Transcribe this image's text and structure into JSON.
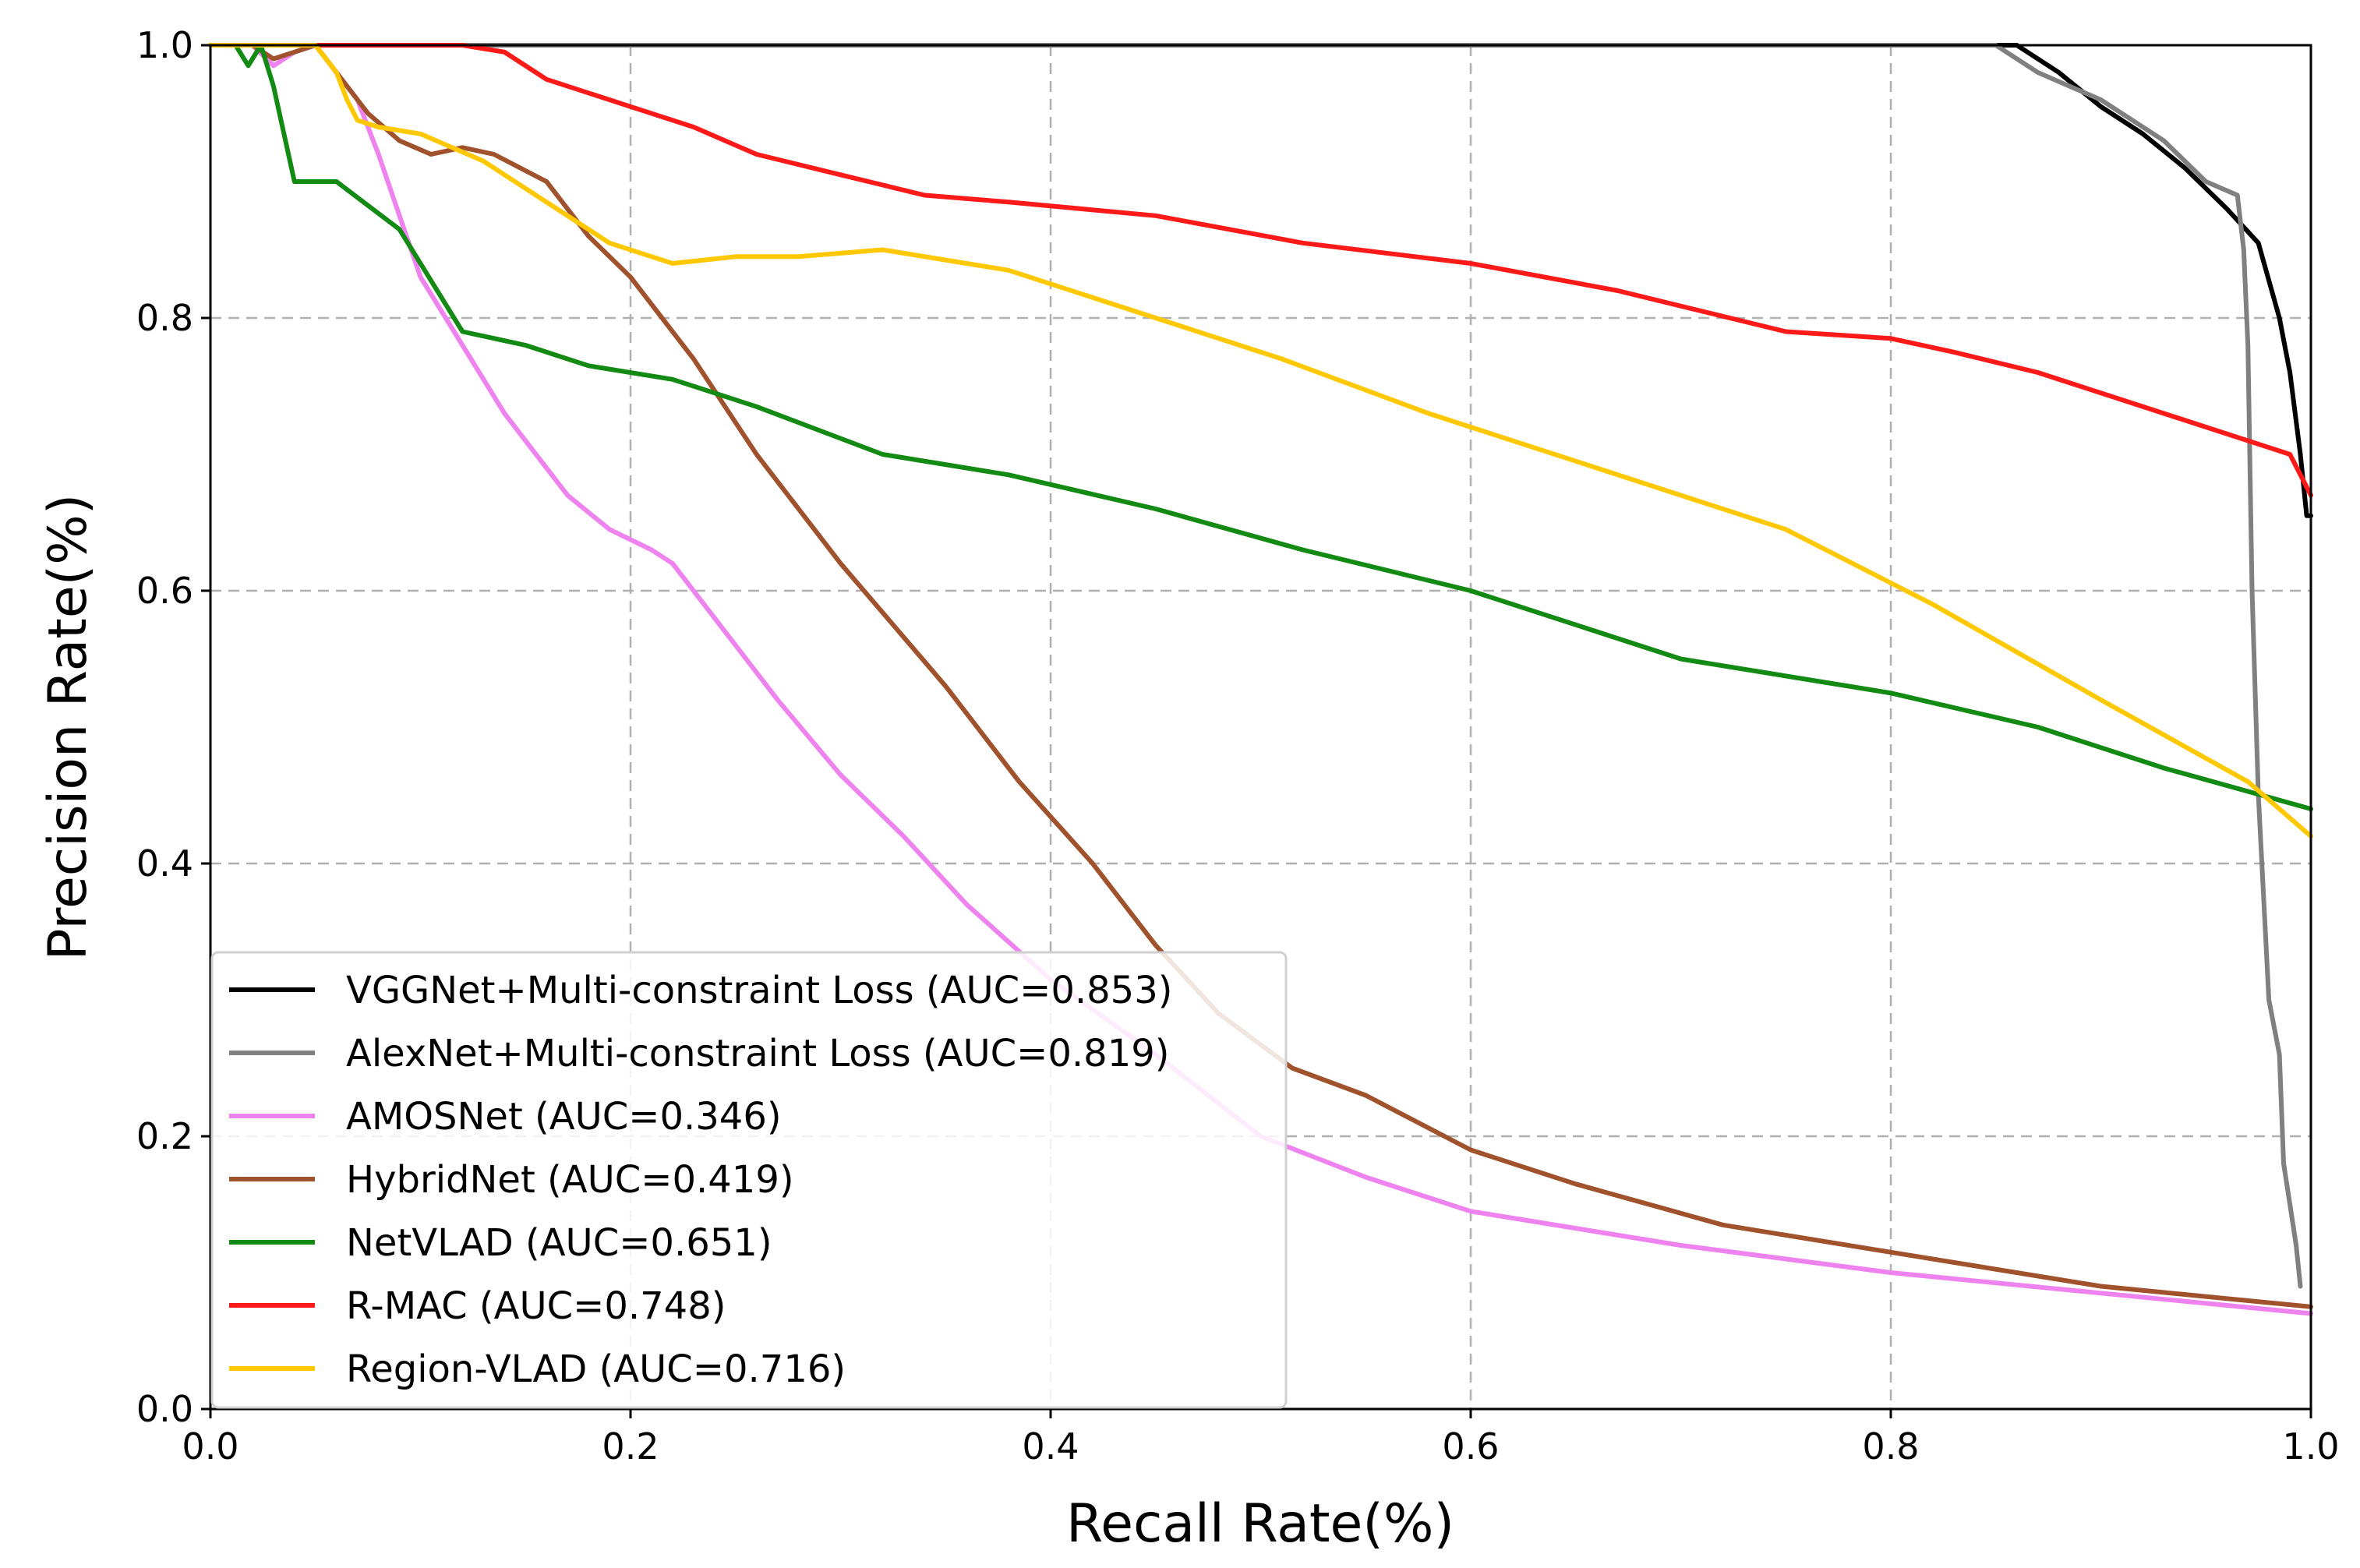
{
  "chart_data": {
    "type": "line",
    "title": "",
    "xlabel": "Recall Rate(%)",
    "ylabel": "Precision Rate(%)",
    "xlim": [
      0.0,
      1.0
    ],
    "ylim": [
      0.0,
      1.0
    ],
    "xticks": [
      "0.0",
      "0.2",
      "0.4",
      "0.6",
      "0.8",
      "1.0"
    ],
    "yticks": [
      "0.0",
      "0.2",
      "0.4",
      "0.6",
      "0.8",
      "1.0"
    ],
    "grid": true,
    "legend_position": "lower-left",
    "series": [
      {
        "name": "VGGNet+Multi-constraint Loss (AUC=0.853)",
        "color": "#000000",
        "x": [
          0.0,
          0.86,
          0.88,
          0.9,
          0.92,
          0.94,
          0.96,
          0.975,
          0.985,
          0.99,
          0.995,
          0.998,
          1.0
        ],
        "y": [
          1.0,
          1.0,
          0.98,
          0.955,
          0.935,
          0.91,
          0.88,
          0.855,
          0.8,
          0.76,
          0.7,
          0.655,
          0.655
        ]
      },
      {
        "name": "AlexNet+Multi-constraint Loss (AUC=0.819)",
        "color": "#808080",
        "x": [
          0.0,
          0.85,
          0.87,
          0.9,
          0.93,
          0.95,
          0.965,
          0.968,
          0.97,
          0.972,
          0.975,
          0.98,
          0.985,
          0.987,
          0.99,
          0.993,
          0.995
        ],
        "y": [
          1.0,
          1.0,
          0.98,
          0.96,
          0.93,
          0.9,
          0.89,
          0.85,
          0.78,
          0.6,
          0.45,
          0.3,
          0.26,
          0.18,
          0.15,
          0.12,
          0.09
        ]
      },
      {
        "name": "AMOSNet (AUC=0.346)",
        "color": "#ee82ee",
        "x": [
          0.0,
          0.02,
          0.03,
          0.04,
          0.05,
          0.06,
          0.07,
          0.08,
          0.1,
          0.12,
          0.14,
          0.16,
          0.17,
          0.19,
          0.21,
          0.22,
          0.24,
          0.27,
          0.3,
          0.33,
          0.36,
          0.4,
          0.45,
          0.5,
          0.55,
          0.6,
          0.7,
          0.8,
          0.9,
          1.0
        ],
        "y": [
          1.0,
          1.0,
          0.985,
          0.995,
          1.0,
          0.98,
          0.96,
          0.92,
          0.83,
          0.78,
          0.73,
          0.69,
          0.67,
          0.645,
          0.63,
          0.62,
          0.58,
          0.52,
          0.465,
          0.42,
          0.37,
          0.315,
          0.26,
          0.2,
          0.17,
          0.145,
          0.12,
          0.1,
          0.085,
          0.07
        ]
      },
      {
        "name": "HybridNet (AUC=0.419)",
        "color": "#a0522d",
        "x": [
          0.0,
          0.02,
          0.03,
          0.04,
          0.05,
          0.06,
          0.075,
          0.09,
          0.105,
          0.12,
          0.135,
          0.16,
          0.18,
          0.2,
          0.215,
          0.23,
          0.26,
          0.3,
          0.35,
          0.385,
          0.42,
          0.45,
          0.48,
          0.515,
          0.55,
          0.6,
          0.65,
          0.72,
          0.8,
          0.9,
          1.0
        ],
        "y": [
          1.0,
          1.0,
          0.99,
          0.995,
          1.0,
          0.98,
          0.95,
          0.93,
          0.92,
          0.925,
          0.92,
          0.9,
          0.86,
          0.83,
          0.8,
          0.77,
          0.7,
          0.62,
          0.53,
          0.46,
          0.4,
          0.34,
          0.29,
          0.25,
          0.23,
          0.19,
          0.165,
          0.135,
          0.115,
          0.09,
          0.075
        ]
      },
      {
        "name": "NetVLAD (AUC=0.651)",
        "color": "#138a13",
        "x": [
          0.0,
          0.012,
          0.018,
          0.024,
          0.03,
          0.04,
          0.06,
          0.09,
          0.12,
          0.15,
          0.18,
          0.22,
          0.26,
          0.32,
          0.38,
          0.45,
          0.52,
          0.6,
          0.7,
          0.8,
          0.87,
          0.93,
          1.0
        ],
        "y": [
          1.0,
          1.0,
          0.985,
          1.0,
          0.97,
          0.9,
          0.9,
          0.865,
          0.79,
          0.78,
          0.765,
          0.755,
          0.735,
          0.7,
          0.685,
          0.66,
          0.63,
          0.6,
          0.55,
          0.525,
          0.5,
          0.47,
          0.44
        ]
      },
      {
        "name": "R-MAC (AUC=0.748)",
        "color": "#ff1a1a",
        "x": [
          0.0,
          0.12,
          0.14,
          0.16,
          0.18,
          0.2,
          0.23,
          0.26,
          0.3,
          0.34,
          0.38,
          0.45,
          0.52,
          0.6,
          0.67,
          0.75,
          0.8,
          0.83,
          0.87,
          0.91,
          0.95,
          0.99,
          1.0
        ],
        "y": [
          1.0,
          1.0,
          0.995,
          0.975,
          0.965,
          0.955,
          0.94,
          0.92,
          0.905,
          0.89,
          0.885,
          0.875,
          0.855,
          0.84,
          0.82,
          0.79,
          0.785,
          0.775,
          0.76,
          0.74,
          0.72,
          0.7,
          0.67
        ]
      },
      {
        "name": "Region-VLAD (AUC=0.716)",
        "color": "#ffc800",
        "x": [
          0.0,
          0.05,
          0.06,
          0.065,
          0.07,
          0.08,
          0.1,
          0.13,
          0.16,
          0.19,
          0.22,
          0.25,
          0.28,
          0.32,
          0.38,
          0.45,
          0.51,
          0.58,
          0.66,
          0.75,
          0.82,
          0.9,
          0.97,
          1.0
        ],
        "y": [
          1.0,
          1.0,
          0.98,
          0.96,
          0.945,
          0.94,
          0.935,
          0.915,
          0.885,
          0.855,
          0.84,
          0.845,
          0.845,
          0.85,
          0.835,
          0.8,
          0.77,
          0.73,
          0.69,
          0.645,
          0.59,
          0.52,
          0.46,
          0.42
        ]
      }
    ]
  }
}
